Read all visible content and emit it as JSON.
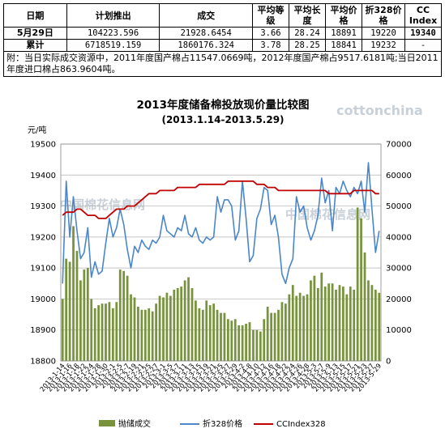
{
  "table": {
    "headers": [
      "日期",
      "计划推出",
      "成交",
      "平均等级",
      "平均长度",
      "平均价格",
      "折328价格",
      "CC Index"
    ],
    "rows": [
      {
        "label": "5月29日",
        "planned": "104223.596",
        "deal": "21928.6454",
        "grade": "3.66",
        "length": "28.24",
        "price": "18891",
        "price328": "19220",
        "ccindex": "19340"
      },
      {
        "label": "累计",
        "planned": "6718519.159",
        "deal": "1860176.324",
        "grade": "3.78",
        "length": "28.25",
        "price": "18841",
        "price328": "19232",
        "ccindex": "-"
      }
    ],
    "note": "附：当日实际成交资源中，2011年度国产棉占11547.0669吨，2012年度国产棉占9517.6181吨;当日2011年度进口棉占863.9604吨。"
  },
  "watermarks": {
    "latin": "cottonchina",
    "cn": "中国棉花信息网"
  },
  "chart_data": {
    "type": "bar",
    "title": "2013年度储备棉投放现价量比较图",
    "subtitle": "(2013.1.14-2013.5.29)",
    "ylabel": "元/吨",
    "ylim_left": [
      18800,
      19500
    ],
    "yticks_left": [
      18800,
      18900,
      19000,
      19100,
      19200,
      19300,
      19400,
      19500
    ],
    "ylim_right": [
      0,
      70000
    ],
    "yticks_right": [
      0,
      10000,
      20000,
      30000,
      40000,
      50000,
      60000,
      70000
    ],
    "grid": true,
    "legend_position": "bottom",
    "x": [
      "2013-1-14",
      "2013-1-15",
      "2013-1-16",
      "2013-1-17",
      "2013-1-18",
      "2013-1-21",
      "2013-1-22",
      "2013-1-23",
      "2013-1-24",
      "2013-1-25",
      "2013-1-28",
      "2013-1-29",
      "2013-1-30",
      "2013-1-31",
      "2013-2-1",
      "2013-2-4",
      "2013-2-5",
      "2013-2-6",
      "2013-2-7",
      "2013-2-8",
      "2013-2-19",
      "2013-2-20",
      "2013-2-21",
      "2013-2-22",
      "2013-2-25",
      "2013-2-26",
      "2013-2-27",
      "2013-2-28",
      "2013-3-1",
      "2013-3-4",
      "2013-3-5",
      "2013-3-6",
      "2013-3-7",
      "2013-3-8",
      "2013-3-11",
      "2013-3-12",
      "2013-3-13",
      "2013-3-14",
      "2013-3-15",
      "2013-3-18",
      "2013-3-19",
      "2013-3-20",
      "2013-3-21",
      "2013-3-22",
      "2013-3-25",
      "2013-3-26",
      "2013-3-27",
      "2013-3-28",
      "2013-3-29",
      "2013-4-1",
      "2013-4-2",
      "2013-4-3",
      "2013-4-8",
      "2013-4-9",
      "2013-4-10",
      "2013-4-11",
      "2013-4-12",
      "2013-4-15",
      "2013-4-16",
      "2013-4-17",
      "2013-4-18",
      "2013-4-19",
      "2013-4-22",
      "2013-4-23",
      "2013-4-24",
      "2013-4-25",
      "2013-4-26",
      "2013-4-27",
      "2013-4-28",
      "2013-5-2",
      "2013-5-3",
      "2013-5-6",
      "2013-5-7",
      "2013-5-8",
      "2013-5-9",
      "2013-5-10",
      "2013-5-13",
      "2013-5-14",
      "2013-5-15",
      "2013-5-16",
      "2013-5-17",
      "2013-5-20",
      "2013-5-21",
      "2013-5-22",
      "2013-5-23",
      "2013-5-24",
      "2013-5-27",
      "2013-5-28",
      "2013-5-29"
    ],
    "xtick_labels": [
      "2013-1-14",
      "2013-1-16",
      "2013-1-18",
      "2013-1-22",
      "2013-1-24",
      "2013-1-28",
      "2013-1-30",
      "2013-2-1",
      "2013-2-5",
      "2013-2-7",
      "2013-2-19",
      "2013-2-21",
      "2013-2-25",
      "2013-2-27",
      "2013-3-1",
      "2013-3-5",
      "2013-3-7",
      "2013-3-11",
      "2013-3-13",
      "2013-3-15",
      "2013-3-19",
      "2013-3-21",
      "2013-3-25",
      "2013-3-27",
      "2013-3-29",
      "2013-4-2",
      "2013-4-8",
      "2013-4-10",
      "2013-4-12",
      "2013-4-16",
      "2013-4-18",
      "2013-4-22",
      "2013-4-24",
      "2013-4-26",
      "2013-4-28",
      "2013-5-3",
      "2013-5-7",
      "2013-5-9",
      "2013-5-13",
      "2013-5-15",
      "2013-5-17",
      "2013-5-21",
      "2013-5-23",
      "2013-5-27",
      "2013-5-29"
    ],
    "series": [
      {
        "name": "抛储成交",
        "axis": "right",
        "color": "#77933c",
        "values": [
          20000,
          33000,
          32000,
          43500,
          35500,
          26000,
          29500,
          30000,
          20000,
          17000,
          18000,
          18500,
          18500,
          19000,
          17000,
          19000,
          29500,
          29000,
          27500,
          21500,
          20500,
          17500,
          16500,
          16500,
          17000,
          16000,
          18500,
          21000,
          20500,
          22000,
          21000,
          23000,
          23500,
          24000,
          26000,
          27000,
          23500,
          19500,
          17000,
          16500,
          19500,
          18000,
          18500,
          16500,
          15500,
          15500,
          13500,
          13000,
          13500,
          11500,
          11500,
          12000,
          12500,
          10000,
          10000,
          9500,
          13500,
          17500,
          15500,
          15500,
          16500,
          19000,
          18500,
          21500,
          24500,
          21000,
          22000,
          21000,
          21500,
          26000,
          27500,
          23500,
          28500,
          24000,
          25000,
          25000,
          23000,
          24500,
          24000,
          21500,
          24000,
          23000,
          49500,
          46000,
          35000,
          26000,
          24500,
          23000,
          22000
        ]
      },
      {
        "name": "折328价格",
        "axis": "left",
        "color": "#4a86c8",
        "values": [
          19050,
          19380,
          19200,
          19330,
          19220,
          19130,
          19150,
          19230,
          19070,
          19120,
          19080,
          19090,
          19180,
          19260,
          19200,
          19230,
          19290,
          19240,
          19160,
          19100,
          19170,
          19150,
          19190,
          19170,
          19160,
          19190,
          19180,
          19200,
          19270,
          19220,
          19210,
          19200,
          19230,
          19220,
          19270,
          19210,
          19200,
          19230,
          19190,
          19180,
          19200,
          19190,
          19200,
          19330,
          19280,
          19320,
          19320,
          19300,
          19190,
          19220,
          19380,
          19260,
          19120,
          19140,
          19260,
          19290,
          19360,
          19350,
          19240,
          19270,
          19200,
          19080,
          19050,
          19100,
          19130,
          19330,
          19280,
          19300,
          19230,
          19190,
          19220,
          19270,
          19390,
          19310,
          19350,
          19220,
          19360,
          19340,
          19380,
          19350,
          19330,
          19360,
          19340,
          19380,
          19280,
          19440,
          19290,
          19150,
          19220
        ]
      },
      {
        "name": "CCIndex328",
        "axis": "left",
        "color": "#c00000",
        "values": [
          19270,
          19280,
          19280,
          19280,
          19290,
          19290,
          19280,
          19270,
          19270,
          19270,
          19260,
          19260,
          19260,
          19270,
          19280,
          19290,
          19290,
          19290,
          19300,
          19300,
          19300,
          19310,
          19320,
          19330,
          19340,
          19340,
          19340,
          19350,
          19350,
          19350,
          19350,
          19350,
          19360,
          19360,
          19360,
          19360,
          19360,
          19360,
          19370,
          19370,
          19370,
          19370,
          19370,
          19370,
          19370,
          19370,
          19380,
          19380,
          19380,
          19380,
          19380,
          19380,
          19380,
          19380,
          19370,
          19370,
          19370,
          19360,
          19360,
          19360,
          19350,
          19350,
          19350,
          19350,
          19350,
          19350,
          19350,
          19350,
          19350,
          19350,
          19350,
          19350,
          19350,
          19350,
          19340,
          19340,
          19340,
          19340,
          19340,
          19340,
          19340,
          19350,
          19350,
          19350,
          19350,
          19350,
          19350,
          19340,
          19340
        ]
      }
    ]
  }
}
